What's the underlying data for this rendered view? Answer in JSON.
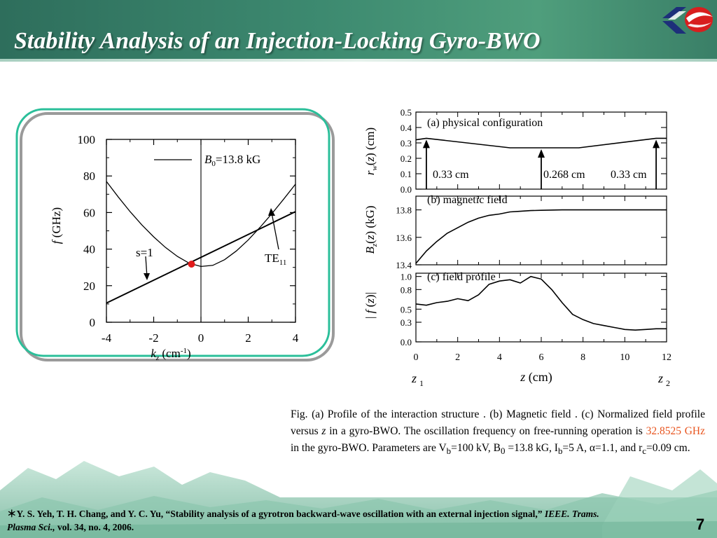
{
  "slide": {
    "title": "Stability Analysis of an Injection-Locking Gyro-BWO",
    "page_number": "7"
  },
  "colors": {
    "title_bar": "#3d8a70",
    "frame_outer": "#2bbf9a",
    "frame_inner": "#9a9a9a",
    "operating_point": "#e21b1b",
    "highlight": "#e8541e"
  },
  "caption": {
    "seg1": "Fig. (a) Profile of the interaction structure . (b) Magnetic field . (c) Normalized field profile  versus ",
    "z": "z",
    "seg2": " in a  gyro-BWO. The oscillation frequency  on free-running operation is ",
    "highlight": "32.8525 GHz",
    "seg3": " in the gyro-BWO. Parameters are V",
    "vb_sub": "b",
    "seg4": "=100 kV, B",
    "b0_sub": "0",
    "seg5": " =13.8 kG, I",
    "ib_sub": "b",
    "seg6": "=5 A, α=1.1, and r",
    "rc_sub": "c",
    "seg7": "=0.09 cm."
  },
  "reference": {
    "star": "＊",
    "authors": "Y. S. Yeh, T. H. Chang, and Y. C. Yu, “Stability analysis of a gyrotron backward-wave oscillation with an external injection signal,” ",
    "journal": "IEEE. Trams. Plasma Sci.,",
    "rest": " vol. 34, no. 4, 2006."
  },
  "chart_data": [
    {
      "type": "line",
      "title": "",
      "xlabel": "k_z (cm^-1)",
      "ylabel": "f (GHz)",
      "xlim": [
        -4,
        4
      ],
      "ylim": [
        0,
        100
      ],
      "x_ticks": [
        "-4",
        "-2",
        "0",
        "2",
        "4"
      ],
      "y_ticks": [
        "0",
        "20",
        "40",
        "60",
        "80",
        "100"
      ],
      "legend": {
        "entry": "=13.8 kG",
        "symbol": "B",
        "symbol_sub": "0"
      },
      "annotations": {
        "beam_mode": "s=1",
        "waveguide_mode": "TE",
        "waveguide_mode_sub": "11"
      },
      "series": [
        {
          "name": "TE11",
          "x": [
            -4,
            -3.5,
            -3,
            -2.5,
            -2,
            -1.5,
            -1,
            -0.5,
            0,
            0.5,
            1,
            1.5,
            2,
            2.5,
            3,
            3.5,
            4
          ],
          "y": [
            77.0,
            68.5,
            60.5,
            53.2,
            46.7,
            40.9,
            36.0,
            32.3,
            30.5,
            31.1,
            34.2,
            39.0,
            45.0,
            51.9,
            59.4,
            67.3,
            75.5
          ]
        },
        {
          "name": "s=1",
          "x": [
            -4,
            4
          ],
          "y": [
            10.5,
            60.5
          ]
        }
      ],
      "operating_point": {
        "x": -0.4,
        "y": 31.8
      }
    },
    {
      "type": "line",
      "panel": "a",
      "title": "(a) physical configuration",
      "ylabel": "r_w(z) (cm)",
      "xlim": [
        0,
        12
      ],
      "ylim": [
        0,
        0.5
      ],
      "y_ticks": [
        "0.5",
        "0.4",
        "0.3",
        "0.2",
        "0.1",
        "0.0"
      ],
      "labels": [
        "0.33 cm",
        "0.268 cm",
        "0.33 cm"
      ],
      "series": [
        {
          "x": [
            0,
            0.5,
            4.5,
            7.8,
            11.5,
            12
          ],
          "y": [
            0.32,
            0.33,
            0.268,
            0.268,
            0.33,
            0.33
          ]
        }
      ],
      "arrows_x": [
        0.5,
        6,
        11.5
      ]
    },
    {
      "type": "line",
      "panel": "b",
      "title": "(b) magnetic field",
      "ylabel": "B_z(z) (kG)",
      "xlim": [
        0,
        12
      ],
      "ylim": [
        13.4,
        13.9
      ],
      "y_ticks": [
        "13.8",
        "13.6",
        "13.4"
      ],
      "series": [
        {
          "x": [
            0,
            0.5,
            1,
            1.5,
            2,
            2.5,
            3,
            3.5,
            4,
            4.5,
            5,
            5.5,
            6,
            7,
            8,
            9,
            10,
            11,
            12
          ],
          "y": [
            13.41,
            13.5,
            13.57,
            13.63,
            13.67,
            13.71,
            13.74,
            13.76,
            13.77,
            13.785,
            13.79,
            13.795,
            13.797,
            13.8,
            13.8,
            13.8,
            13.8,
            13.8,
            13.8
          ]
        }
      ]
    },
    {
      "type": "line",
      "panel": "c",
      "title": "(c) field profile",
      "ylabel": "|f (z)|",
      "xlabel": "z (cm)",
      "xlim": [
        0,
        12
      ],
      "ylim": [
        0,
        1.05
      ],
      "x_ticks": [
        "0",
        "2",
        "4",
        "6",
        "8",
        "10",
        "12"
      ],
      "y_ticks": [
        "1.0",
        "0.8",
        "0.5",
        "0.3",
        "0.0"
      ],
      "x_endpoints": {
        "left": "z",
        "left_sub": "1",
        "right": "z",
        "right_sub": "2"
      },
      "series": [
        {
          "x": [
            0,
            0.5,
            1,
            1.5,
            2,
            2.5,
            3,
            3.5,
            4,
            4.5,
            5,
            5.5,
            6,
            6.5,
            7,
            7.5,
            8,
            8.5,
            9,
            9.5,
            10,
            10.5,
            11,
            11.5,
            12
          ],
          "y": [
            0.58,
            0.56,
            0.6,
            0.62,
            0.66,
            0.63,
            0.72,
            0.88,
            0.93,
            0.95,
            0.9,
            1.0,
            0.96,
            0.8,
            0.6,
            0.42,
            0.34,
            0.28,
            0.25,
            0.22,
            0.19,
            0.18,
            0.19,
            0.2,
            0.2
          ]
        }
      ]
    }
  ]
}
